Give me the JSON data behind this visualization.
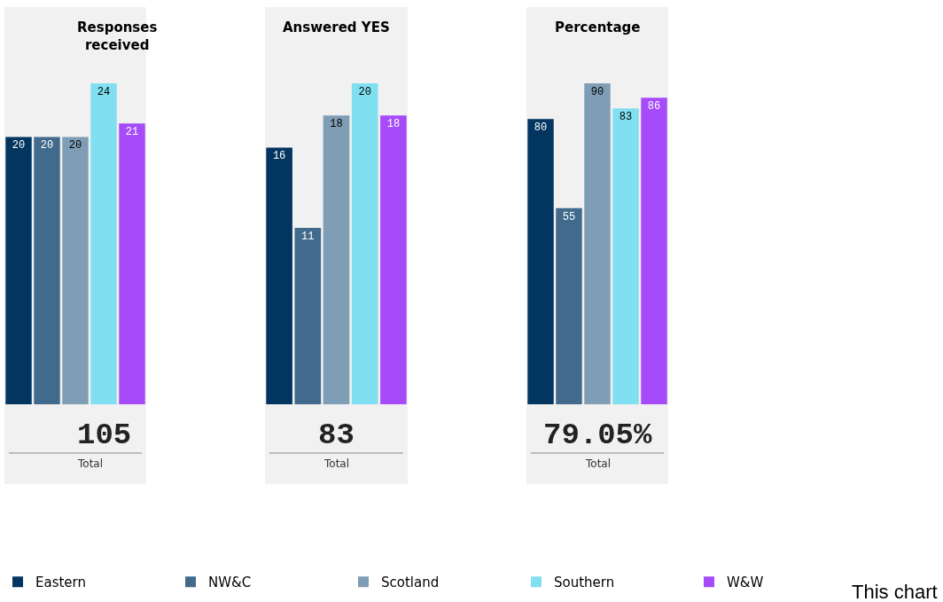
{
  "chart_data": [
    {
      "type": "bar",
      "title": "Responses received",
      "categories": [
        null
      ],
      "data_labels": true,
      "legend": "bottom",
      "series": [
        {
          "name": "Eastern",
          "color": "#023660",
          "values": [
            20
          ]
        },
        {
          "name": "NW&C",
          "color": "#416a8c",
          "values": [
            20
          ]
        },
        {
          "name": "Scotland",
          "color": "#7f9db5",
          "values": [
            20
          ]
        },
        {
          "name": "Southern",
          "color": "#80dff0",
          "values": [
            24
          ]
        },
        {
          "name": "W&W",
          "color": "#a64bfa",
          "values": [
            21
          ]
        }
      ],
      "annotations": [
        "105",
        "Total"
      ]
    },
    {
      "type": "bar",
      "title": "Answered YES",
      "categories": [
        null
      ],
      "data_labels": true,
      "legend": "bottom",
      "series": [
        {
          "name": "Eastern",
          "color": "#023660",
          "values": [
            16
          ]
        },
        {
          "name": "NW&C",
          "color": "#416a8c",
          "values": [
            11
          ]
        },
        {
          "name": "Scotland",
          "color": "#7f9db5",
          "values": [
            18
          ]
        },
        {
          "name": "Southern",
          "color": "#80dff0",
          "values": [
            20
          ]
        },
        {
          "name": "W&W",
          "color": "#a64bfa",
          "values": [
            18
          ]
        }
      ],
      "annotations": [
        "83",
        "Total"
      ]
    },
    {
      "type": "bar",
      "title": "Percentage",
      "categories": [
        null
      ],
      "data_labels": true,
      "legend": "bottom",
      "series": [
        {
          "name": "Eastern",
          "color": "#023660",
          "values": [
            80
          ]
        },
        {
          "name": "NW&C",
          "color": "#416a8c",
          "values": [
            55
          ]
        },
        {
          "name": "Scotland",
          "color": "#7f9db5",
          "values": [
            90
          ]
        },
        {
          "name": "Southern",
          "color": "#80dff0",
          "values": [
            83
          ]
        },
        {
          "name": "W&W",
          "color": "#a64bfa",
          "values": [
            86
          ]
        }
      ],
      "annotations": [
        "79.05%",
        "Total",
        "This chart"
      ]
    }
  ]
}
